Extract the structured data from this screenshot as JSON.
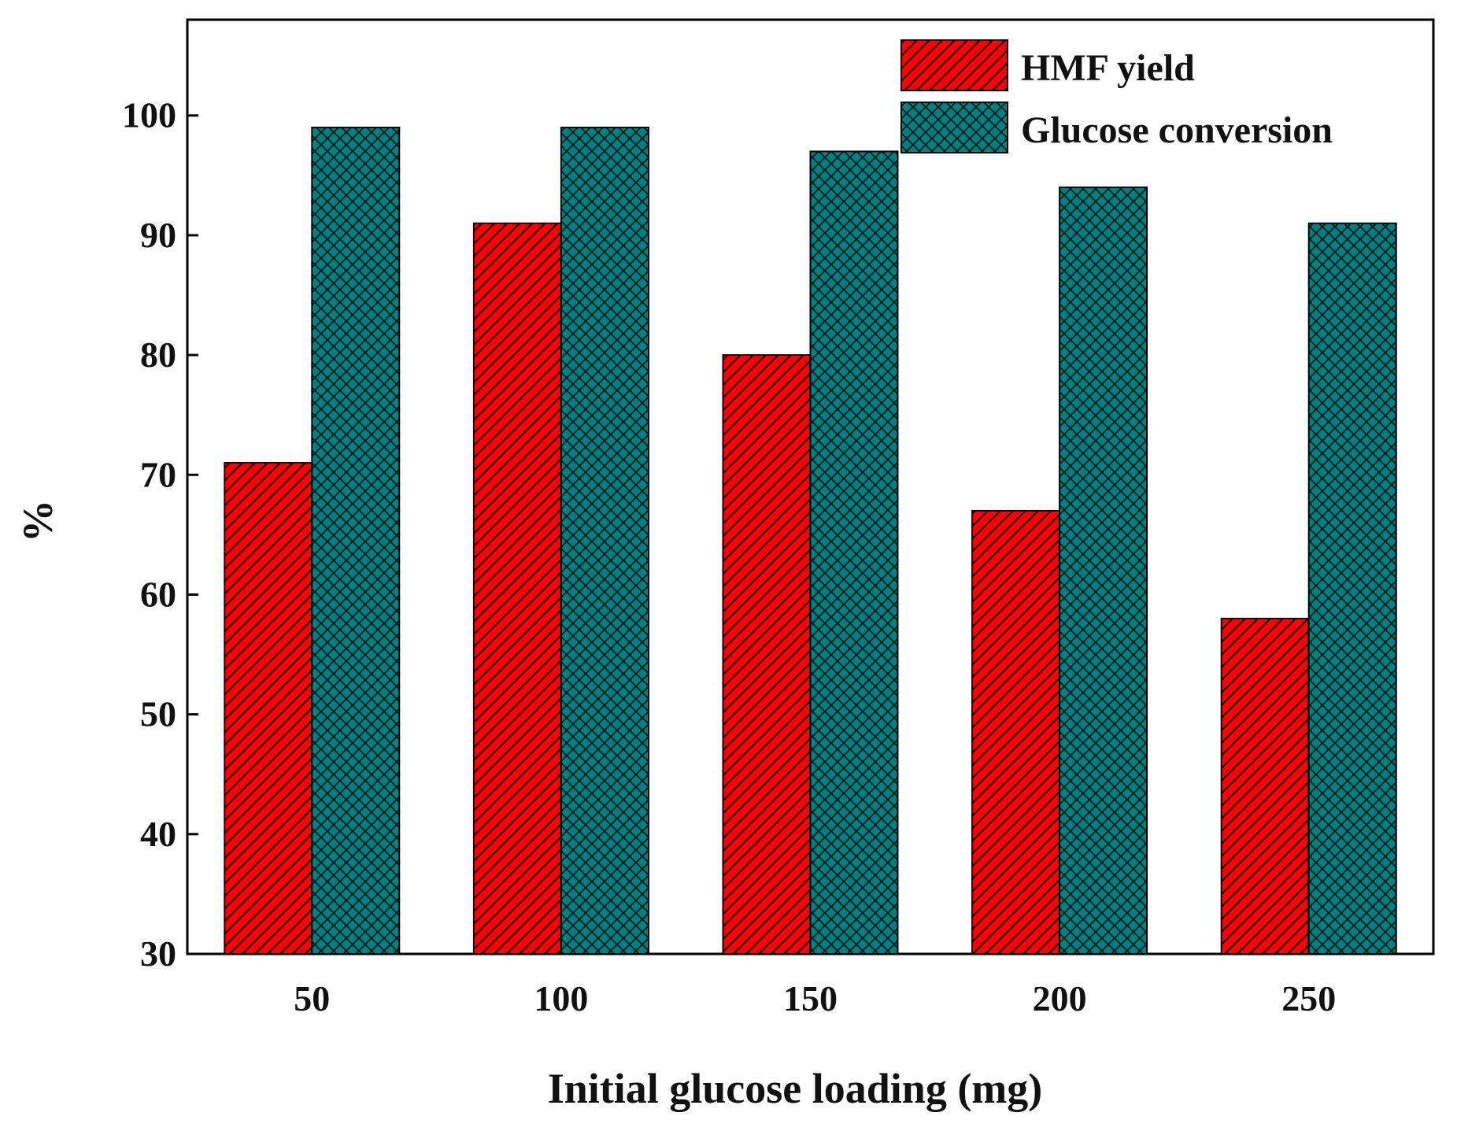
{
  "chart_data": {
    "type": "bar",
    "title": "",
    "xlabel": "Initial glucose loading (mg)",
    "ylabel": "%",
    "categories": [
      "50",
      "100",
      "150",
      "200",
      "250"
    ],
    "series": [
      {
        "name": "HMF yield",
        "values": [
          71,
          91,
          80,
          67,
          58
        ],
        "color": "#ff0000",
        "pattern": "diagonal-hatch"
      },
      {
        "name": "Glucose conversion",
        "values": [
          99,
          99,
          97,
          94,
          91
        ],
        "color": "#008080",
        "pattern": "cross-hatch"
      }
    ],
    "ylim": [
      30,
      108
    ],
    "yticks": [
      30,
      40,
      50,
      60,
      70,
      80,
      90,
      100
    ],
    "grid": false,
    "legend_position": "top-right"
  }
}
